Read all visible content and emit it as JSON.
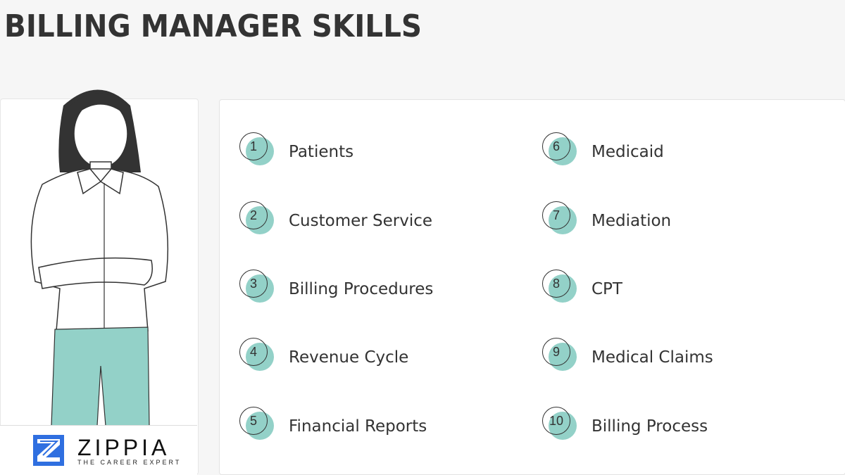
{
  "title": "BILLING MANAGER SKILLS",
  "skills": [
    {
      "n": "1",
      "label": "Patients"
    },
    {
      "n": "2",
      "label": "Customer Service"
    },
    {
      "n": "3",
      "label": "Billing Procedures"
    },
    {
      "n": "4",
      "label": "Revenue Cycle"
    },
    {
      "n": "5",
      "label": "Financial Reports"
    },
    {
      "n": "6",
      "label": "Medicaid"
    },
    {
      "n": "7",
      "label": "Mediation"
    },
    {
      "n": "8",
      "label": "CPT"
    },
    {
      "n": "9",
      "label": "Medical Claims"
    },
    {
      "n": "10",
      "label": "Billing Process"
    }
  ],
  "logo": {
    "name": "ZIPPIA",
    "tagline": "THE CAREER EXPERT"
  },
  "colors": {
    "accent": "#93d1c8",
    "logo_blue": "#2f6fe0",
    "text": "#333333"
  }
}
